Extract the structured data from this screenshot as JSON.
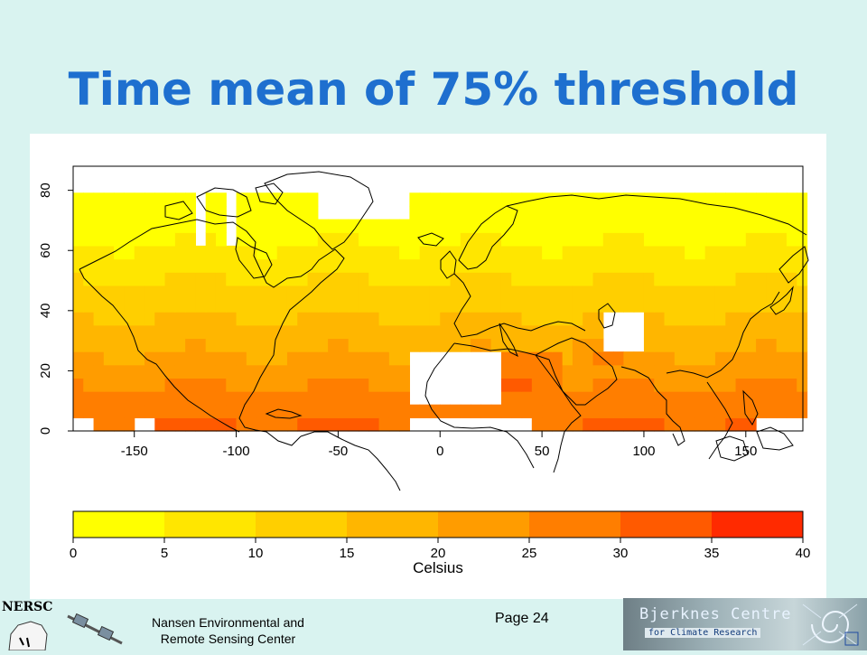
{
  "slide": {
    "title": "Time mean of 75% threshold",
    "footer_org_line1": "Nansen Environmental and",
    "footer_org_line2": "Remote Sensing Center",
    "page_label": "Page 24",
    "nersc_logo_text": "NERSC",
    "bjerknes_line1": "Bjerknes Centre",
    "bjerknes_line2": "for Climate Research",
    "background_color": "#d9f3f0",
    "title_color": "#1e6fcf"
  },
  "map": {
    "x_ticks": [
      "-150",
      "-100",
      "-50",
      "0",
      "50",
      "100",
      "150"
    ],
    "y_ticks": [
      "0",
      "20",
      "40",
      "60",
      "80"
    ],
    "colorbar": {
      "tick_labels": [
        "0",
        "5",
        "10",
        "15",
        "20",
        "25",
        "30",
        "35",
        "40"
      ],
      "label": "Celsius",
      "colors": [
        "#ffff00",
        "#ffe600",
        "#ffcf00",
        "#ffb600",
        "#ff9c00",
        "#ff7e00",
        "#ff5a00",
        "#ff2a00"
      ]
    }
  }
}
